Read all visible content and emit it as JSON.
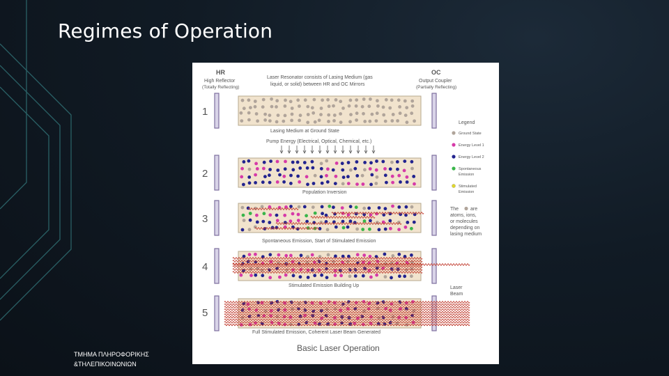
{
  "slide": {
    "title": "Regimes of Operation",
    "footer_line1": "ΤΜΗΜΑ ΠΛΗΡΟΦΟΡΙΚΗΣ",
    "footer_line2": "&ΤΗΛΕΠΙΚΟΙΝΩΝΙΩΝ"
  },
  "figure": {
    "hr_title": "HR",
    "hr_sub1": "High Reflector",
    "hr_sub2": "(Totally Reflecting)",
    "intro_line1": "Laser Resonator consists of Lasing Medium (gas",
    "intro_line2": "liquid, or solid) between HR and OC Mirrors",
    "oc_title": "OC",
    "oc_sub1": "Output Coupler",
    "oc_sub2": "(Partially Reflecting)",
    "pump_text": "Pump Energy (Electrical, Optical, Chemical, etc.)",
    "stages": [
      {
        "num": "1",
        "caption": "Lasing Medium at Ground State"
      },
      {
        "num": "2",
        "caption": "Population Inversion"
      },
      {
        "num": "3",
        "caption": "Spontaneous Emission, Start of Stimulated Emission"
      },
      {
        "num": "4",
        "caption": "Stimulated Emission Building Up"
      },
      {
        "num": "5",
        "caption": "Full Stimulated Emission, Coherent Laser Beam Generated"
      }
    ],
    "legend": {
      "title": "Legend",
      "items": [
        {
          "label": "Ground State",
          "color": "#b0a49a"
        },
        {
          "label": "Energy Level 1",
          "color": "#d63aa8"
        },
        {
          "label": "Energy Level 2",
          "color": "#22238f"
        },
        {
          "label": "Spontaneous",
          "label2": "Emission",
          "color": "#39b54a"
        },
        {
          "label": "Stimulated",
          "label2": "Emission",
          "color": "#e0d82c"
        }
      ],
      "note_line1": "The",
      "note_are": "are",
      "note_line2": "atoms, ions,",
      "note_line3": "or molecules",
      "note_line4": "depending on",
      "note_line5": "lasing medium"
    },
    "beam_line1": "Laser",
    "beam_line2": "Beam",
    "footer_title": "Basic Laser Operation"
  }
}
